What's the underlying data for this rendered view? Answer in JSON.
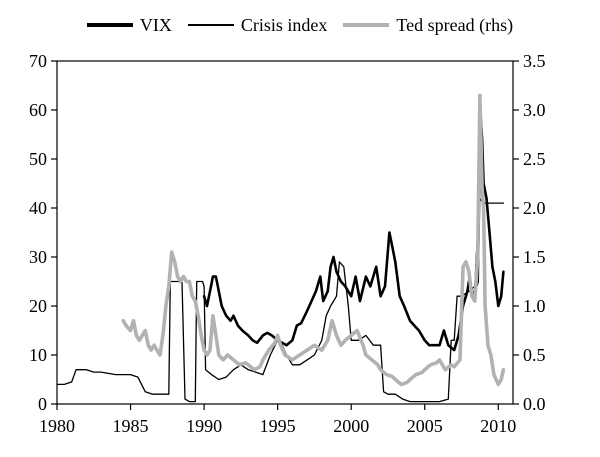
{
  "chart_data": {
    "type": "line",
    "title": "",
    "xlabel": "",
    "ylabel_left": "",
    "ylabel_right": "",
    "grid": false,
    "legend_position": "top",
    "x_axis": {
      "min": 1980,
      "max": 2011,
      "ticks": [
        1980,
        1985,
        1990,
        1995,
        2000,
        2005,
        2010
      ]
    },
    "y_left": {
      "min": 0,
      "max": 70,
      "ticks": [
        0,
        10,
        20,
        30,
        40,
        50,
        60,
        70
      ]
    },
    "y_right": {
      "min": 0,
      "max": 3.5,
      "ticks": [
        "0.0",
        "0.5",
        "1.0",
        "1.5",
        "2.0",
        "2.5",
        "3.0",
        "3.5"
      ]
    },
    "series": [
      {
        "name": "VIX",
        "axis": "left",
        "color": "#000000",
        "width": 2.6,
        "points": [
          [
            1990.0,
            22
          ],
          [
            1990.2,
            20
          ],
          [
            1990.4,
            23
          ],
          [
            1990.6,
            26
          ],
          [
            1990.8,
            26
          ],
          [
            1991.0,
            23
          ],
          [
            1991.2,
            20
          ],
          [
            1991.5,
            18
          ],
          [
            1991.8,
            17
          ],
          [
            1992.0,
            18
          ],
          [
            1992.3,
            16
          ],
          [
            1992.6,
            15
          ],
          [
            1993.0,
            14
          ],
          [
            1993.3,
            13
          ],
          [
            1993.6,
            12.5
          ],
          [
            1994.0,
            14
          ],
          [
            1994.3,
            14.5
          ],
          [
            1994.6,
            14
          ],
          [
            1995.0,
            13
          ],
          [
            1995.3,
            12.5
          ],
          [
            1995.6,
            12
          ],
          [
            1996.0,
            13
          ],
          [
            1996.3,
            16
          ],
          [
            1996.6,
            16.5
          ],
          [
            1997.0,
            19
          ],
          [
            1997.3,
            21
          ],
          [
            1997.6,
            23
          ],
          [
            1997.9,
            26
          ],
          [
            1998.1,
            21
          ],
          [
            1998.4,
            23
          ],
          [
            1998.6,
            28
          ],
          [
            1998.8,
            30
          ],
          [
            1999.0,
            27
          ],
          [
            1999.3,
            25
          ],
          [
            1999.6,
            24
          ],
          [
            2000.0,
            22
          ],
          [
            2000.3,
            26
          ],
          [
            2000.6,
            21
          ],
          [
            2001.0,
            26
          ],
          [
            2001.3,
            24
          ],
          [
            2001.7,
            28
          ],
          [
            2002.0,
            22
          ],
          [
            2002.3,
            24
          ],
          [
            2002.6,
            35
          ],
          [
            2002.8,
            32
          ],
          [
            2003.0,
            29
          ],
          [
            2003.3,
            22
          ],
          [
            2003.6,
            20
          ],
          [
            2004.0,
            17
          ],
          [
            2004.3,
            16
          ],
          [
            2004.6,
            15
          ],
          [
            2005.0,
            13
          ],
          [
            2005.3,
            12
          ],
          [
            2005.6,
            12
          ],
          [
            2006.0,
            12
          ],
          [
            2006.3,
            15
          ],
          [
            2006.6,
            12
          ],
          [
            2007.0,
            11
          ],
          [
            2007.3,
            14
          ],
          [
            2007.6,
            20
          ],
          [
            2007.9,
            23
          ],
          [
            2008.0,
            25
          ],
          [
            2008.3,
            22
          ],
          [
            2008.6,
            25
          ],
          [
            2008.8,
            59
          ],
          [
            2008.9,
            54
          ],
          [
            2009.0,
            45
          ],
          [
            2009.2,
            42
          ],
          [
            2009.4,
            35
          ],
          [
            2009.6,
            28
          ],
          [
            2009.8,
            25
          ],
          [
            2010.0,
            20
          ],
          [
            2010.2,
            22
          ],
          [
            2010.35,
            27
          ]
        ]
      },
      {
        "name": "Crisis index",
        "axis": "left",
        "color": "#000000",
        "width": 1.3,
        "points": [
          [
            1980.0,
            4
          ],
          [
            1980.5,
            4
          ],
          [
            1981.0,
            4.5
          ],
          [
            1981.3,
            7
          ],
          [
            1982.0,
            7
          ],
          [
            1982.5,
            6.5
          ],
          [
            1983.0,
            6.5
          ],
          [
            1984.0,
            6
          ],
          [
            1985.0,
            6
          ],
          [
            1985.5,
            5.5
          ],
          [
            1986.0,
            2.5
          ],
          [
            1986.5,
            2
          ],
          [
            1987.0,
            2
          ],
          [
            1987.6,
            2
          ],
          [
            1987.7,
            25
          ],
          [
            1988.0,
            25
          ],
          [
            1988.5,
            25
          ],
          [
            1988.7,
            1
          ],
          [
            1989.0,
            0.5
          ],
          [
            1989.4,
            0.5
          ],
          [
            1989.5,
            25
          ],
          [
            1989.9,
            25
          ],
          [
            1990.0,
            24
          ],
          [
            1990.1,
            7
          ],
          [
            1990.5,
            6
          ],
          [
            1991.0,
            5
          ],
          [
            1991.5,
            5.5
          ],
          [
            1992.0,
            7
          ],
          [
            1992.5,
            8
          ],
          [
            1993.0,
            7
          ],
          [
            1993.5,
            6.5
          ],
          [
            1994.0,
            6
          ],
          [
            1994.5,
            10
          ],
          [
            1995.0,
            13
          ],
          [
            1995.3,
            12
          ],
          [
            1995.6,
            10
          ],
          [
            1996.0,
            8
          ],
          [
            1996.5,
            8
          ],
          [
            1997.0,
            9
          ],
          [
            1997.5,
            10
          ],
          [
            1998.0,
            13
          ],
          [
            1998.3,
            18
          ],
          [
            1998.6,
            20
          ],
          [
            1999.0,
            22
          ],
          [
            1999.2,
            29
          ],
          [
            1999.5,
            28
          ],
          [
            1999.8,
            20
          ],
          [
            2000.0,
            13
          ],
          [
            2000.5,
            13
          ],
          [
            2001.0,
            14
          ],
          [
            2001.5,
            12
          ],
          [
            2002.0,
            12
          ],
          [
            2002.2,
            2.5
          ],
          [
            2002.5,
            2
          ],
          [
            2003.0,
            2
          ],
          [
            2003.5,
            1
          ],
          [
            2004.0,
            0.5
          ],
          [
            2004.5,
            0.5
          ],
          [
            2005.0,
            0.5
          ],
          [
            2005.5,
            0.5
          ],
          [
            2006.0,
            0.5
          ],
          [
            2006.6,
            1
          ],
          [
            2006.8,
            13
          ],
          [
            2007.0,
            13
          ],
          [
            2007.2,
            22
          ],
          [
            2007.5,
            22
          ],
          [
            2008.0,
            23
          ],
          [
            2008.4,
            24
          ],
          [
            2008.7,
            42
          ],
          [
            2009.0,
            41
          ],
          [
            2009.5,
            41
          ],
          [
            2010.0,
            41
          ],
          [
            2010.35,
            41
          ]
        ]
      },
      {
        "name": "Ted spread (rhs)",
        "axis": "right",
        "color": "#b2b2b2",
        "width": 3.6,
        "points": [
          [
            1984.5,
            0.85
          ],
          [
            1984.7,
            0.8
          ],
          [
            1985.0,
            0.75
          ],
          [
            1985.2,
            0.85
          ],
          [
            1985.4,
            0.7
          ],
          [
            1985.6,
            0.65
          ],
          [
            1985.8,
            0.7
          ],
          [
            1986.0,
            0.75
          ],
          [
            1986.2,
            0.6
          ],
          [
            1986.4,
            0.55
          ],
          [
            1986.6,
            0.6
          ],
          [
            1986.8,
            0.55
          ],
          [
            1987.0,
            0.5
          ],
          [
            1987.2,
            0.7
          ],
          [
            1987.4,
            1.0
          ],
          [
            1987.6,
            1.2
          ],
          [
            1987.8,
            1.55
          ],
          [
            1988.0,
            1.45
          ],
          [
            1988.2,
            1.3
          ],
          [
            1988.4,
            1.25
          ],
          [
            1988.6,
            1.3
          ],
          [
            1988.8,
            1.25
          ],
          [
            1989.0,
            1.25
          ],
          [
            1989.2,
            1.1
          ],
          [
            1989.4,
            1.05
          ],
          [
            1989.6,
            0.9
          ],
          [
            1989.8,
            0.7
          ],
          [
            1990.0,
            0.55
          ],
          [
            1990.2,
            0.5
          ],
          [
            1990.4,
            0.55
          ],
          [
            1990.6,
            0.9
          ],
          [
            1990.8,
            0.7
          ],
          [
            1991.0,
            0.5
          ],
          [
            1991.3,
            0.45
          ],
          [
            1991.6,
            0.5
          ],
          [
            1992.0,
            0.45
          ],
          [
            1992.4,
            0.4
          ],
          [
            1992.8,
            0.42
          ],
          [
            1993.0,
            0.4
          ],
          [
            1993.4,
            0.35
          ],
          [
            1993.8,
            0.38
          ],
          [
            1994.0,
            0.45
          ],
          [
            1994.4,
            0.55
          ],
          [
            1994.8,
            0.62
          ],
          [
            1995.0,
            0.7
          ],
          [
            1995.2,
            0.6
          ],
          [
            1995.5,
            0.5
          ],
          [
            1996.0,
            0.45
          ],
          [
            1996.5,
            0.5
          ],
          [
            1997.0,
            0.55
          ],
          [
            1997.5,
            0.6
          ],
          [
            1998.0,
            0.55
          ],
          [
            1998.4,
            0.65
          ],
          [
            1998.7,
            0.85
          ],
          [
            1999.0,
            0.7
          ],
          [
            1999.3,
            0.6
          ],
          [
            1999.6,
            0.65
          ],
          [
            2000.0,
            0.7
          ],
          [
            2000.4,
            0.75
          ],
          [
            2000.8,
            0.6
          ],
          [
            2001.0,
            0.5
          ],
          [
            2001.4,
            0.45
          ],
          [
            2001.8,
            0.4
          ],
          [
            2002.0,
            0.35
          ],
          [
            2002.4,
            0.3
          ],
          [
            2002.8,
            0.28
          ],
          [
            2003.0,
            0.25
          ],
          [
            2003.4,
            0.2
          ],
          [
            2003.8,
            0.22
          ],
          [
            2004.0,
            0.25
          ],
          [
            2004.4,
            0.3
          ],
          [
            2004.8,
            0.32
          ],
          [
            2005.0,
            0.35
          ],
          [
            2005.4,
            0.4
          ],
          [
            2005.8,
            0.42
          ],
          [
            2006.0,
            0.45
          ],
          [
            2006.4,
            0.35
          ],
          [
            2006.8,
            0.4
          ],
          [
            2007.0,
            0.38
          ],
          [
            2007.4,
            0.45
          ],
          [
            2007.6,
            1.4
          ],
          [
            2007.8,
            1.45
          ],
          [
            2008.0,
            1.35
          ],
          [
            2008.2,
            1.1
          ],
          [
            2008.4,
            1.05
          ],
          [
            2008.6,
            1.5
          ],
          [
            2008.75,
            3.15
          ],
          [
            2008.9,
            2.2
          ],
          [
            2009.0,
            2.0
          ],
          [
            2009.1,
            1.0
          ],
          [
            2009.3,
            0.6
          ],
          [
            2009.5,
            0.5
          ],
          [
            2009.7,
            0.3
          ],
          [
            2010.0,
            0.2
          ],
          [
            2010.2,
            0.25
          ],
          [
            2010.35,
            0.35
          ]
        ]
      }
    ]
  }
}
